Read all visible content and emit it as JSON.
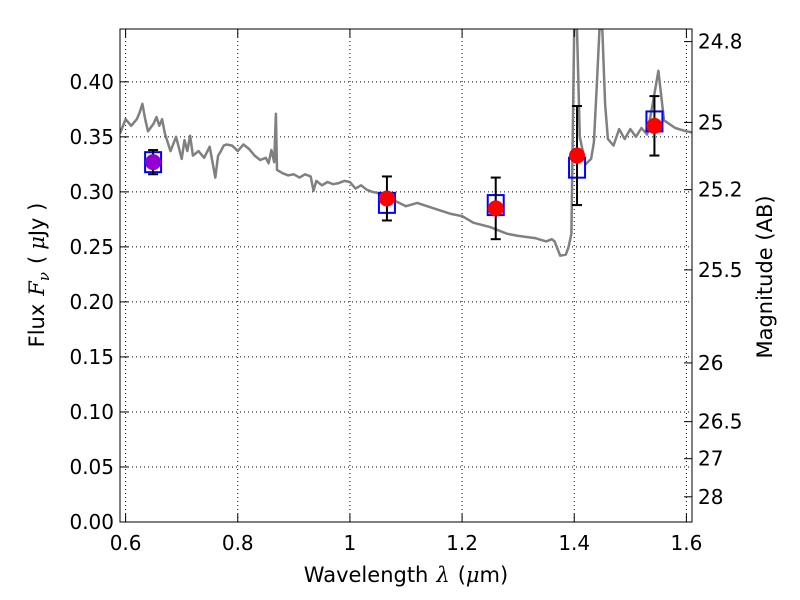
{
  "chart_data": {
    "type": "scatter",
    "xlabel": "Wavelength",
    "xlabel_symbol": "λ",
    "xlabel_unit_open": "(",
    "xlabel_unit_mu": "μ",
    "xlabel_unit_rest": "m)",
    "ylabel": "Flux",
    "ylabel_symbol": "F",
    "ylabel_subscript": "ν",
    "ylabel_unit_open": "(",
    "ylabel_unit_mu": "μ",
    "ylabel_unit_rest": "Jy )",
    "right_ylabel": "Magnitude (AB)",
    "xlim": [
      0.59,
      1.61
    ],
    "ylim": [
      0.0,
      0.448
    ],
    "grid": true,
    "x_ticks": [
      {
        "value": 0.6,
        "label": "0.6"
      },
      {
        "value": 0.8,
        "label": "0.8"
      },
      {
        "value": 1.0,
        "label": "1"
      },
      {
        "value": 1.2,
        "label": "1.2"
      },
      {
        "value": 1.4,
        "label": "1.4"
      },
      {
        "value": 1.6,
        "label": "1.6"
      }
    ],
    "y_ticks": [
      {
        "value": 0.0,
        "label": "0.00"
      },
      {
        "value": 0.05,
        "label": "0.05"
      },
      {
        "value": 0.1,
        "label": "0.10"
      },
      {
        "value": 0.15,
        "label": "0.15"
      },
      {
        "value": 0.2,
        "label": "0.20"
      },
      {
        "value": 0.25,
        "label": "0.25"
      },
      {
        "value": 0.3,
        "label": "0.30"
      },
      {
        "value": 0.35,
        "label": "0.35"
      },
      {
        "value": 0.4,
        "label": "0.40"
      }
    ],
    "right_ticks": [
      {
        "mag": 24.8,
        "label": "24.8"
      },
      {
        "mag": 25.0,
        "label": "25"
      },
      {
        "mag": 25.2,
        "label": "25.2"
      },
      {
        "mag": 25.5,
        "label": "25.5"
      },
      {
        "mag": 26.0,
        "label": "26"
      },
      {
        "mag": 26.5,
        "label": "26.5"
      },
      {
        "mag": 27.0,
        "label": "27"
      },
      {
        "mag": 28.0,
        "label": "28"
      }
    ],
    "observed": [
      {
        "x": 0.649,
        "y": 0.327,
        "yerr": 0.011,
        "color": "#9400d3"
      },
      {
        "x": 1.066,
        "y": 0.294,
        "yerr": 0.02,
        "color": "#ff0000"
      },
      {
        "x": 1.26,
        "y": 0.285,
        "yerr": 0.028,
        "color": "#ff0000"
      },
      {
        "x": 1.405,
        "y": 0.333,
        "yerr": 0.045,
        "color": "#ff0000"
      },
      {
        "x": 1.543,
        "y": 0.36,
        "yerr": 0.027,
        "color": "#ff0000"
      }
    ],
    "model_bands": [
      {
        "x": 0.649,
        "y": 0.327
      },
      {
        "x": 1.066,
        "y": 0.29
      },
      {
        "x": 1.26,
        "y": 0.288
      },
      {
        "x": 1.405,
        "y": 0.322
      },
      {
        "x": 1.543,
        "y": 0.364
      }
    ],
    "spectrum": {
      "x": [
        0.59,
        0.6,
        0.61,
        0.62,
        0.625,
        0.63,
        0.635,
        0.64,
        0.65,
        0.655,
        0.66,
        0.665,
        0.67,
        0.68,
        0.69,
        0.7,
        0.705,
        0.71,
        0.715,
        0.72,
        0.73,
        0.74,
        0.75,
        0.76,
        0.765,
        0.77,
        0.775,
        0.78,
        0.79,
        0.8,
        0.81,
        0.82,
        0.83,
        0.84,
        0.85,
        0.855,
        0.86,
        0.865,
        0.868,
        0.87,
        0.88,
        0.89,
        0.9,
        0.91,
        0.92,
        0.93,
        0.935,
        0.94,
        0.95,
        0.96,
        0.97,
        0.98,
        0.99,
        1.0,
        1.01,
        1.02,
        1.03,
        1.04,
        1.05,
        1.06,
        1.08,
        1.1,
        1.12,
        1.15,
        1.18,
        1.2,
        1.22,
        1.25,
        1.28,
        1.3,
        1.33,
        1.35,
        1.36,
        1.365,
        1.375,
        1.385,
        1.39,
        1.395,
        1.4,
        1.405,
        1.41,
        1.42,
        1.43,
        1.435,
        1.44,
        1.445,
        1.45,
        1.455,
        1.46,
        1.47,
        1.48,
        1.49,
        1.5,
        1.51,
        1.52,
        1.53,
        1.54,
        1.55,
        1.56,
        1.58,
        1.6,
        1.61
      ],
      "y": [
        0.353,
        0.366,
        0.36,
        0.366,
        0.372,
        0.38,
        0.366,
        0.355,
        0.362,
        0.368,
        0.36,
        0.366,
        0.353,
        0.337,
        0.35,
        0.33,
        0.347,
        0.337,
        0.351,
        0.333,
        0.337,
        0.331,
        0.341,
        0.313,
        0.333,
        0.337,
        0.342,
        0.343,
        0.342,
        0.337,
        0.343,
        0.339,
        0.333,
        0.329,
        0.331,
        0.326,
        0.338,
        0.327,
        0.371,
        0.32,
        0.317,
        0.315,
        0.316,
        0.313,
        0.316,
        0.314,
        0.301,
        0.31,
        0.306,
        0.309,
        0.307,
        0.308,
        0.31,
        0.309,
        0.303,
        0.306,
        0.302,
        0.3,
        0.299,
        0.296,
        0.292,
        0.287,
        0.29,
        0.285,
        0.28,
        0.278,
        0.272,
        0.268,
        0.262,
        0.26,
        0.258,
        0.255,
        0.257,
        0.255,
        0.242,
        0.243,
        0.25,
        0.262,
        0.448,
        0.448,
        0.35,
        0.325,
        0.33,
        0.345,
        0.395,
        0.448,
        0.448,
        0.38,
        0.348,
        0.342,
        0.357,
        0.348,
        0.357,
        0.35,
        0.358,
        0.352,
        0.38,
        0.41,
        0.365,
        0.358,
        0.355,
        0.354
      ]
    },
    "colors": {
      "spectrum": "#808080",
      "model_box": "#0000ff",
      "errorbar": "#000000",
      "grid": "#000000"
    }
  }
}
